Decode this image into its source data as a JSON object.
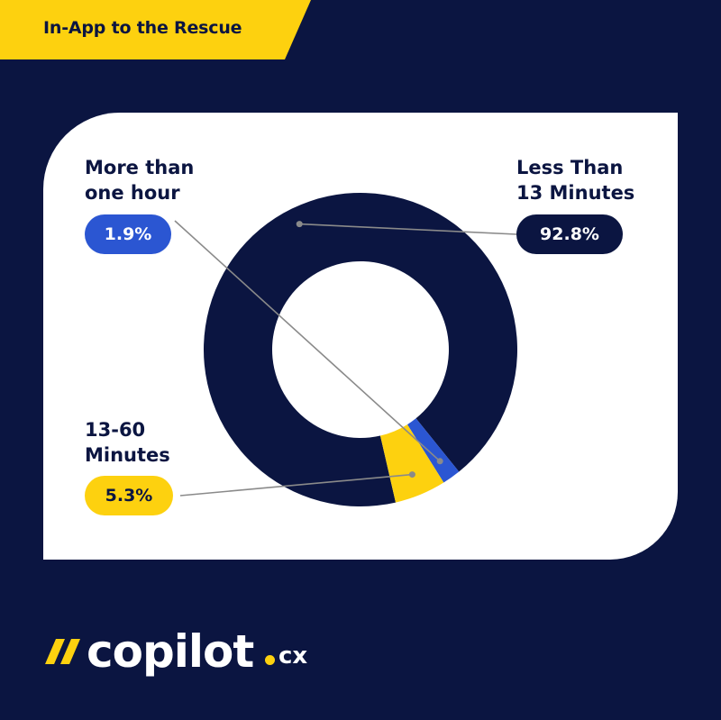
{
  "header": {
    "title": "In-App to the Rescue"
  },
  "colors": {
    "background": "#0b1541",
    "card": "#ffffff",
    "navy": "#0b1541",
    "blue": "#2b56d2",
    "yellow": "#fdd10f",
    "leader": "#8a8a8a"
  },
  "chart_data": {
    "type": "pie",
    "style": "donut",
    "slices": [
      {
        "name": "Less Than 13 Minutes",
        "line1": "Less Than",
        "line2": "13 Minutes",
        "value": 92.8,
        "label": "92.8%",
        "color": "#0b1541"
      },
      {
        "name": "More than one hour",
        "line1": "More than",
        "line2": "one hour",
        "value": 1.9,
        "label": "1.9%",
        "color": "#2b56d2"
      },
      {
        "name": "13-60 Minutes",
        "line1": "13-60",
        "line2": "Minutes",
        "value": 5.3,
        "label": "5.3%",
        "color": "#fdd10f"
      }
    ]
  },
  "brand": {
    "logo_icon": "double-slash-icon",
    "word": "copilot",
    "tld": "cx"
  }
}
